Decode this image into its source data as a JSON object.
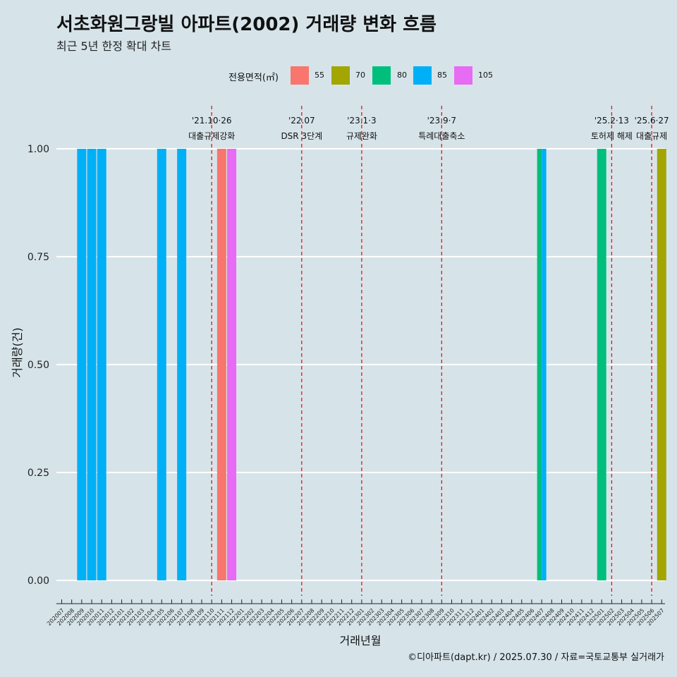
{
  "title": "서초화원그랑빌 아파트(2002) 거래량 변화 흐름",
  "subtitle": "최근 5년 한정 확대 차트",
  "caption": "©디아파트(dapt.kr) / 2025.07.30 / 자료=국토교통부 실거래가",
  "legend": {
    "title": "전용면적(㎡)",
    "items": [
      {
        "label": "55",
        "color": "#F8766D"
      },
      {
        "label": "70",
        "color": "#A3A500"
      },
      {
        "label": "80",
        "color": "#00BF7D"
      },
      {
        "label": "85",
        "color": "#00B0F6"
      },
      {
        "label": "105",
        "color": "#E76BF3"
      }
    ]
  },
  "chart_data": {
    "type": "bar",
    "xlabel": "거래년월",
    "ylabel": "거래량(건)",
    "ylim": [
      0,
      1
    ],
    "yticks": [
      "0.00",
      "0.25",
      "0.50",
      "0.75",
      "1.00"
    ],
    "categories": [
      "202007",
      "202008",
      "202009",
      "202010",
      "202011",
      "202012",
      "202101",
      "202102",
      "202103",
      "202104",
      "202105",
      "202106",
      "202107",
      "202108",
      "202109",
      "202110",
      "202111",
      "202112",
      "202201",
      "202202",
      "202203",
      "202204",
      "202205",
      "202206",
      "202207",
      "202208",
      "202209",
      "202210",
      "202211",
      "202212",
      "202301",
      "202302",
      "202303",
      "202304",
      "202305",
      "202306",
      "202307",
      "202308",
      "202309",
      "202310",
      "202311",
      "202312",
      "202401",
      "202402",
      "202403",
      "202404",
      "202405",
      "202406",
      "202407",
      "202408",
      "202409",
      "202410",
      "202411",
      "202412",
      "202501",
      "202502",
      "202503",
      "202504",
      "202505",
      "202506",
      "202507"
    ],
    "bars": [
      {
        "month": "202009",
        "area": "85",
        "value": 1
      },
      {
        "month": "202010",
        "area": "85",
        "value": 1
      },
      {
        "month": "202011",
        "area": "85",
        "value": 1
      },
      {
        "month": "202105",
        "area": "85",
        "value": 1
      },
      {
        "month": "202107",
        "area": "85",
        "value": 1
      },
      {
        "month": "202111",
        "area": "55",
        "value": 1
      },
      {
        "month": "202112",
        "area": "105",
        "value": 1
      },
      {
        "month": "202407",
        "area": "80",
        "value": 1
      },
      {
        "month": "202407",
        "area": "85",
        "value": 1
      },
      {
        "month": "202501",
        "area": "80",
        "value": 1
      },
      {
        "month": "202507",
        "area": "70",
        "value": 1
      }
    ],
    "events": [
      {
        "month": "202110",
        "date": "'21.10·26",
        "label": "대출규제강화"
      },
      {
        "month": "202207",
        "date": "'22.07",
        "label": "DSR 3단계"
      },
      {
        "month": "202301",
        "date": "'23.1·3",
        "label": "규제완화"
      },
      {
        "month": "202309",
        "date": "'23.9·7",
        "label": "특례대출축소"
      },
      {
        "month": "202502",
        "date": "'25.2·13",
        "label": "토허제 해제"
      },
      {
        "month": "202506",
        "date": "'25.6·27",
        "label": "대출규제"
      }
    ]
  }
}
